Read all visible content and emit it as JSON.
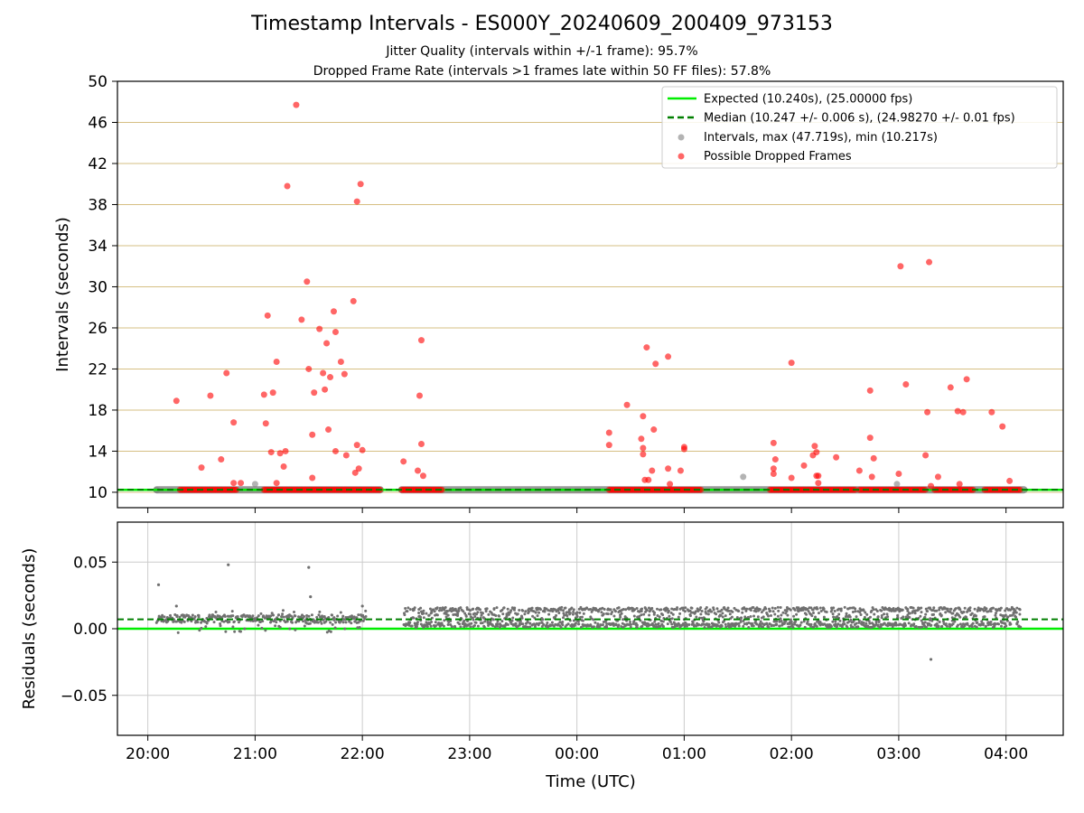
{
  "title": "Timestamp Intervals - ES000Y_20240609_200409_973153",
  "subtitle_1": "Jitter Quality (intervals within +/-1 frame): 95.7%",
  "subtitle_2": "Dropped Frame Rate (intervals >1 frames late within 50 FF files): 57.8%",
  "chart_data": [
    {
      "type": "scatter",
      "ylabel": "Intervals (seconds)",
      "xlabel": "",
      "ylim": [
        8.5,
        50
      ],
      "yticks": [
        10,
        14,
        18,
        22,
        26,
        30,
        34,
        38,
        42,
        46,
        50
      ],
      "grid": "horizontal gridlines at y ticks",
      "legend_position": "top-right",
      "lines": [
        {
          "name": "Expected (10.240s), (25.00000 fps)",
          "y": 10.24,
          "color": "#00ee00",
          "style": "solid"
        },
        {
          "name": "Median (10.247 +/- 0.006 s), (24.98270 +/- 0.01 fps)",
          "y": 10.247,
          "color": "#007f00",
          "style": "dashed"
        }
      ],
      "series": [
        {
          "name": "Intervals, max (47.719s), min (10.217s)",
          "color": "#808080",
          "baseline_segments": [
            [
              "20:05",
              "22:10"
            ],
            [
              "22:22",
              "04:10"
            ]
          ],
          "baseline_y": 10.24,
          "points": [
            {
              "x": "21:00",
              "y": 10.8
            },
            {
              "x": "01:33",
              "y": 11.5
            },
            {
              "x": "02:59",
              "y": 10.8
            },
            {
              "x": "20:05",
              "y": 10.2
            }
          ]
        },
        {
          "name": "Possible Dropped Frames",
          "color": "#ff0000",
          "dense_segments": [
            [
              "20:18",
              "20:50"
            ],
            [
              "21:05",
              "22:10"
            ],
            [
              "22:22",
              "22:45"
            ],
            [
              "00:18",
              "01:10"
            ],
            [
              "01:48",
              "02:36"
            ],
            [
              "02:38",
              "03:15"
            ],
            [
              "03:20",
              "03:42"
            ],
            [
              "03:48",
              "04:08"
            ]
          ],
          "dense_y": 10.24,
          "points": [
            {
              "x": "20:16",
              "y": 18.9
            },
            {
              "x": "20:30",
              "y": 12.4
            },
            {
              "x": "20:35",
              "y": 19.4
            },
            {
              "x": "20:41",
              "y": 13.2
            },
            {
              "x": "20:44",
              "y": 21.6
            },
            {
              "x": "20:48",
              "y": 16.8
            },
            {
              "x": "20:48",
              "y": 10.9
            },
            {
              "x": "20:52",
              "y": 10.9
            },
            {
              "x": "21:05",
              "y": 19.5
            },
            {
              "x": "21:06",
              "y": 16.7
            },
            {
              "x": "21:07",
              "y": 27.2
            },
            {
              "x": "21:09",
              "y": 13.9
            },
            {
              "x": "21:10",
              "y": 19.7
            },
            {
              "x": "21:12",
              "y": 22.7
            },
            {
              "x": "21:12",
              "y": 10.9
            },
            {
              "x": "21:14",
              "y": 13.8
            },
            {
              "x": "21:16",
              "y": 12.5
            },
            {
              "x": "21:17",
              "y": 14.0
            },
            {
              "x": "21:18",
              "y": 39.8
            },
            {
              "x": "21:23",
              "y": 47.7
            },
            {
              "x": "21:26",
              "y": 26.8
            },
            {
              "x": "21:29",
              "y": 30.5
            },
            {
              "x": "21:30",
              "y": 22.0
            },
            {
              "x": "21:32",
              "y": 11.4
            },
            {
              "x": "21:32",
              "y": 15.6
            },
            {
              "x": "21:33",
              "y": 19.7
            },
            {
              "x": "21:36",
              "y": 25.9
            },
            {
              "x": "21:38",
              "y": 21.6
            },
            {
              "x": "21:39",
              "y": 20.0
            },
            {
              "x": "21:40",
              "y": 24.5
            },
            {
              "x": "21:41",
              "y": 16.1
            },
            {
              "x": "21:42",
              "y": 21.2
            },
            {
              "x": "21:44",
              "y": 27.6
            },
            {
              "x": "21:45",
              "y": 14.0
            },
            {
              "x": "21:45",
              "y": 25.6
            },
            {
              "x": "21:48",
              "y": 22.7
            },
            {
              "x": "21:50",
              "y": 21.5
            },
            {
              "x": "21:51",
              "y": 13.6
            },
            {
              "x": "21:55",
              "y": 28.6
            },
            {
              "x": "21:56",
              "y": 11.9
            },
            {
              "x": "21:57",
              "y": 14.6
            },
            {
              "x": "21:57",
              "y": 38.3
            },
            {
              "x": "21:58",
              "y": 12.3
            },
            {
              "x": "21:59",
              "y": 40.0
            },
            {
              "x": "22:00",
              "y": 14.1
            },
            {
              "x": "22:23",
              "y": 13.0
            },
            {
              "x": "22:31",
              "y": 12.1
            },
            {
              "x": "22:32",
              "y": 19.4
            },
            {
              "x": "22:33",
              "y": 24.8
            },
            {
              "x": "22:33",
              "y": 14.7
            },
            {
              "x": "22:34",
              "y": 11.6
            },
            {
              "x": "00:18",
              "y": 15.8
            },
            {
              "x": "00:18",
              "y": 14.6
            },
            {
              "x": "00:28",
              "y": 18.5
            },
            {
              "x": "00:36",
              "y": 15.2
            },
            {
              "x": "00:37",
              "y": 17.4
            },
            {
              "x": "00:37",
              "y": 14.3
            },
            {
              "x": "00:37",
              "y": 13.7
            },
            {
              "x": "00:38",
              "y": 11.2
            },
            {
              "x": "00:39",
              "y": 24.1
            },
            {
              "x": "00:40",
              "y": 11.2
            },
            {
              "x": "00:42",
              "y": 12.1
            },
            {
              "x": "00:43",
              "y": 16.1
            },
            {
              "x": "00:44",
              "y": 22.5
            },
            {
              "x": "00:51",
              "y": 23.2
            },
            {
              "x": "00:51",
              "y": 12.3
            },
            {
              "x": "00:52",
              "y": 10.8
            },
            {
              "x": "00:58",
              "y": 12.1
            },
            {
              "x": "01:00",
              "y": 14.4
            },
            {
              "x": "01:00",
              "y": 14.2
            },
            {
              "x": "01:50",
              "y": 14.8
            },
            {
              "x": "01:50",
              "y": 11.8
            },
            {
              "x": "01:51",
              "y": 13.2
            },
            {
              "x": "01:50",
              "y": 12.3
            },
            {
              "x": "02:00",
              "y": 22.6
            },
            {
              "x": "02:00",
              "y": 11.4
            },
            {
              "x": "02:07",
              "y": 12.6
            },
            {
              "x": "02:12",
              "y": 13.6
            },
            {
              "x": "02:13",
              "y": 14.5
            },
            {
              "x": "02:14",
              "y": 13.9
            },
            {
              "x": "02:14",
              "y": 11.6
            },
            {
              "x": "02:15",
              "y": 11.6
            },
            {
              "x": "02:15",
              "y": 10.9
            },
            {
              "x": "02:25",
              "y": 13.4
            },
            {
              "x": "02:38",
              "y": 12.1
            },
            {
              "x": "02:44",
              "y": 15.3
            },
            {
              "x": "02:44",
              "y": 19.9
            },
            {
              "x": "02:45",
              "y": 11.5
            },
            {
              "x": "02:46",
              "y": 13.3
            },
            {
              "x": "03:00",
              "y": 11.8
            },
            {
              "x": "03:01",
              "y": 32.0
            },
            {
              "x": "03:04",
              "y": 20.5
            },
            {
              "x": "03:15",
              "y": 13.6
            },
            {
              "x": "03:16",
              "y": 17.8
            },
            {
              "x": "03:17",
              "y": 32.4
            },
            {
              "x": "03:18",
              "y": 10.6
            },
            {
              "x": "03:22",
              "y": 11.5
            },
            {
              "x": "03:29",
              "y": 20.2
            },
            {
              "x": "03:33",
              "y": 17.9
            },
            {
              "x": "03:34",
              "y": 10.8
            },
            {
              "x": "03:36",
              "y": 17.8
            },
            {
              "x": "03:38",
              "y": 21.0
            },
            {
              "x": "03:52",
              "y": 17.8
            },
            {
              "x": "03:58",
              "y": 16.4
            },
            {
              "x": "04:02",
              "y": 11.1
            }
          ]
        }
      ]
    },
    {
      "type": "scatter",
      "ylabel": "Residuals (seconds)",
      "xlabel": "Time (UTC)",
      "xlim": [
        "19:43",
        "04:32"
      ],
      "xticks": [
        "20:00",
        "21:00",
        "22:00",
        "23:00",
        "00:00",
        "01:00",
        "02:00",
        "03:00",
        "04:00"
      ],
      "ylim": [
        -0.08,
        0.08
      ],
      "yticks": [
        -0.05,
        0.0,
        0.05
      ],
      "ytick_labels": [
        "−0.05",
        "0.00",
        "0.05"
      ],
      "grid": "both axes",
      "lines": [
        {
          "name": "expected",
          "y": 0.0,
          "color": "#00ee00",
          "style": "solid"
        },
        {
          "name": "median",
          "y": 0.007,
          "color": "#007f00",
          "style": "dashed"
        }
      ],
      "series": [
        {
          "name": "residuals",
          "color": "#707070",
          "bands": [
            {
              "from": "20:05",
              "to": "22:02",
              "y_min": -0.003,
              "y_max": 0.014
            },
            {
              "from": "22:23",
              "to": "04:08",
              "y_min": 0.001,
              "y_max": 0.016
            }
          ],
          "points": [
            {
              "x": "20:06",
              "y": 0.033
            },
            {
              "x": "20:45",
              "y": 0.048
            },
            {
              "x": "21:30",
              "y": 0.046
            },
            {
              "x": "21:31",
              "y": 0.024
            },
            {
              "x": "03:18",
              "y": -0.023
            },
            {
              "x": "20:16",
              "y": 0.017
            },
            {
              "x": "22:00",
              "y": 0.017
            }
          ]
        }
      ]
    }
  ]
}
